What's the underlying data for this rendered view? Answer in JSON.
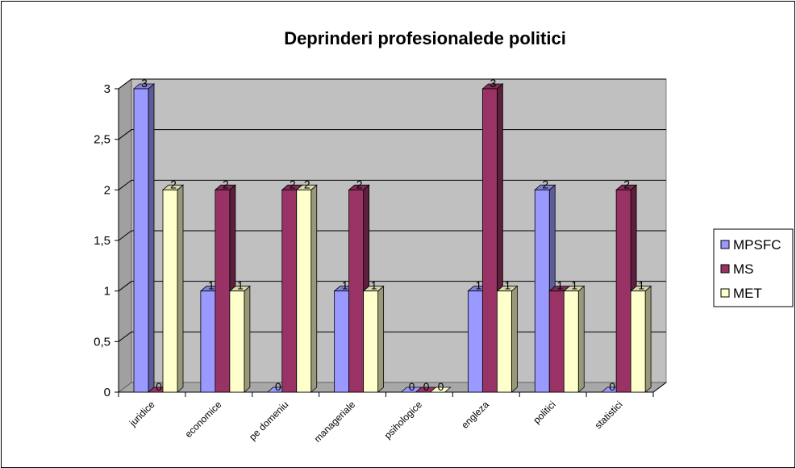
{
  "chart_data": {
    "type": "bar",
    "title": "Deprinderi profesionalede politici",
    "categories": [
      "juridice",
      "economice",
      "pe domeniu",
      "manageriale",
      "psihologice",
      "engleza",
      "politici",
      "statistici"
    ],
    "series": [
      {
        "name": "MPSFC",
        "values": [
          3,
          1,
          0,
          1,
          0,
          1,
          2,
          0
        ],
        "color": "#9999FF"
      },
      {
        "name": "MS",
        "values": [
          0,
          2,
          2,
          2,
          0,
          3,
          1,
          2
        ],
        "color": "#993366"
      },
      {
        "name": "MET",
        "values": [
          2,
          1,
          2,
          1,
          0,
          1,
          1,
          1
        ],
        "color": "#FFFFCC"
      }
    ],
    "y_ticks": [
      "0",
      "0,5",
      "1",
      "1,5",
      "2",
      "2,5",
      "3"
    ],
    "ylim": [
      0,
      3
    ],
    "xlabel": "",
    "ylabel": "",
    "grid": true,
    "legend_position": "right",
    "plot_wall_color": "#C0C0C0"
  }
}
